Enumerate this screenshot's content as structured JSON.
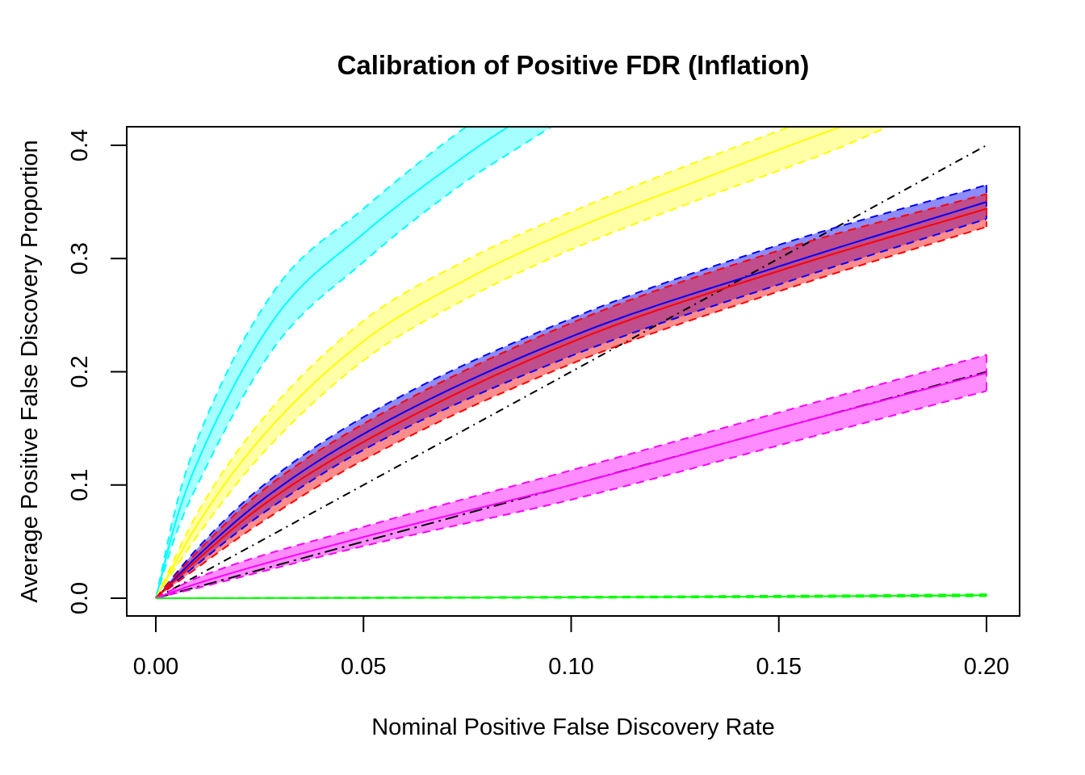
{
  "chart_data": {
    "type": "line",
    "title": "Calibration of Positive FDR (Inflation)",
    "xlabel": "Nominal Positive False Discovery Rate",
    "ylabel": "Average Positive False Discovery Proportion",
    "xlim": [
      0.0,
      0.2
    ],
    "ylim": [
      0.0,
      0.4
    ],
    "xticks": [
      0.0,
      0.05,
      0.1,
      0.15,
      0.2
    ],
    "xtick_labels": [
      "0.00",
      "0.05",
      "0.10",
      "0.15",
      "0.20"
    ],
    "yticks": [
      0.0,
      0.1,
      0.2,
      0.3,
      0.4
    ],
    "ytick_labels": [
      "0.0",
      "0.1",
      "0.2",
      "0.3",
      "0.4"
    ],
    "grid": false,
    "legend": "none",
    "reference_lines": [
      {
        "name": "y = 2x",
        "slope": 2.0,
        "style": "dashdot",
        "color": "#000000"
      },
      {
        "name": "y = x",
        "slope": 1.0,
        "style": "longdash-dot",
        "color": "#000000"
      }
    ],
    "series": [
      {
        "name": "cyan",
        "color": "#00ffff",
        "fill": "#00ffff",
        "fill_opacity": 0.35,
        "x": [
          0.0,
          0.005,
          0.01,
          0.0286,
          0.05,
          0.0746,
          0.0847,
          0.0951
        ],
        "mean": [
          0.0,
          0.07,
          0.12,
          0.247,
          0.322,
          0.391,
          0.416,
          0.44
        ],
        "lower": [
          0.0,
          0.058,
          0.1,
          0.222,
          0.297,
          0.368,
          0.392,
          0.416
        ],
        "upper": [
          0.0,
          0.083,
          0.14,
          0.272,
          0.344,
          0.416,
          0.44,
          0.465
        ]
      },
      {
        "name": "yellow",
        "color": "#ffff00",
        "fill": "#ffff00",
        "fill_opacity": 0.35,
        "x": [
          0.0,
          0.01,
          0.025,
          0.05,
          0.075,
          0.1,
          0.13,
          0.1647,
          0.176
        ],
        "mean": [
          0.0,
          0.065,
          0.14,
          0.227,
          0.282,
          0.325,
          0.368,
          0.416,
          0.43
        ],
        "lower": [
          0.0,
          0.055,
          0.125,
          0.21,
          0.265,
          0.308,
          0.351,
          0.398,
          0.416
        ],
        "upper": [
          0.0,
          0.075,
          0.155,
          0.245,
          0.299,
          0.341,
          0.385,
          0.432,
          0.445
        ]
      },
      {
        "name": "blue",
        "color": "#0000ff",
        "fill": "#0000ff",
        "fill_opacity": 0.45,
        "x": [
          0.0,
          0.01,
          0.025,
          0.05,
          0.1,
          0.15,
          0.2
        ],
        "mean": [
          0.0,
          0.037,
          0.085,
          0.145,
          0.231,
          0.293,
          0.35
        ],
        "lower": [
          0.0,
          0.03,
          0.073,
          0.131,
          0.214,
          0.277,
          0.335
        ],
        "upper": [
          0.0,
          0.044,
          0.097,
          0.16,
          0.247,
          0.312,
          0.365
        ]
      },
      {
        "name": "red",
        "color": "#ff0000",
        "fill": "#ff0000",
        "fill_opacity": 0.45,
        "x": [
          0.0,
          0.01,
          0.025,
          0.05,
          0.1,
          0.15,
          0.2
        ],
        "mean": [
          0.0,
          0.034,
          0.08,
          0.138,
          0.226,
          0.289,
          0.344
        ],
        "lower": [
          0.0,
          0.027,
          0.066,
          0.122,
          0.207,
          0.271,
          0.328
        ],
        "upper": [
          0.0,
          0.041,
          0.093,
          0.154,
          0.243,
          0.307,
          0.357
        ]
      },
      {
        "name": "magenta",
        "color": "#ff00ff",
        "fill": "#ff00ff",
        "fill_opacity": 0.45,
        "x": [
          0.0,
          0.01,
          0.05,
          0.1,
          0.15,
          0.2
        ],
        "mean": [
          0.0,
          0.013,
          0.054,
          0.1,
          0.15,
          0.199
        ],
        "lower": [
          0.0,
          0.009,
          0.046,
          0.087,
          0.135,
          0.183
        ],
        "upper": [
          0.0,
          0.018,
          0.063,
          0.113,
          0.164,
          0.215
        ]
      },
      {
        "name": "green",
        "color": "#00ff00",
        "fill": "#00ff00",
        "fill_opacity": 0.45,
        "x": [
          0.0,
          0.05,
          0.1,
          0.15,
          0.2
        ],
        "mean": [
          0.0,
          0.0003,
          0.0008,
          0.0015,
          0.0025
        ],
        "lower": [
          0.0,
          0.0001,
          0.0004,
          0.0009,
          0.0018
        ],
        "upper": [
          0.0,
          0.0006,
          0.0013,
          0.0022,
          0.0035
        ]
      }
    ]
  }
}
